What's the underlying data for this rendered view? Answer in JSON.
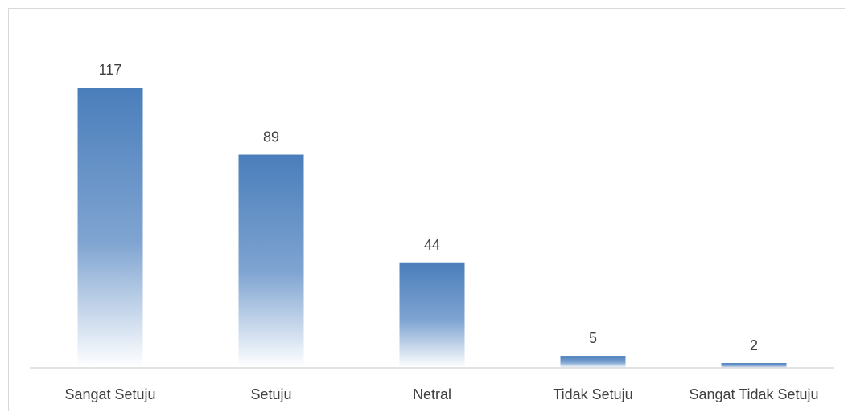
{
  "chart_data": {
    "type": "bar",
    "categories": [
      "Sangat Setuju",
      "Setuju",
      "Netral",
      "Tidak Setuju",
      "Sangat Tidak Setuju"
    ],
    "values": [
      117,
      89,
      44,
      5,
      2
    ],
    "title": "",
    "xlabel": "",
    "ylabel": "",
    "ylim": [
      0,
      117
    ],
    "grid": false,
    "legend": "none",
    "data_labels": true,
    "colors": {
      "bar_top": "#4a7ebb",
      "bar_mid": "#7fa4d1",
      "bar_bottom": "#ffffff",
      "axis": "#d9d9d9",
      "text": "#404040"
    }
  }
}
